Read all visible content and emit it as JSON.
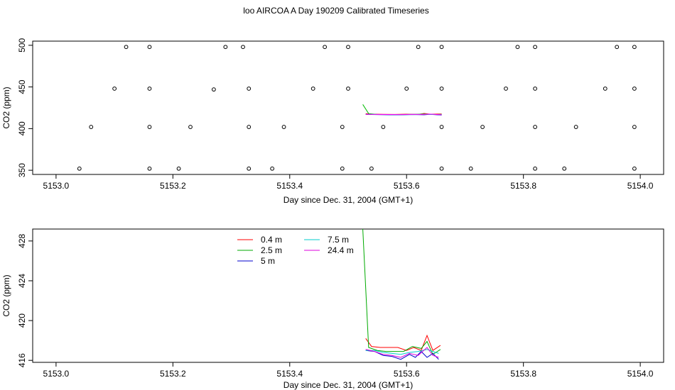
{
  "figure": {
    "title": "loo AIRCOA A  Day 190209  Calibrated Timeseries"
  },
  "chart_data": [
    {
      "type": "scatter",
      "xlabel": "Day since Dec. 31, 2004 (GMT+1)",
      "ylabel": "CO2 (ppm)",
      "xlim": [
        5152.96,
        5154.04
      ],
      "ylim": [
        345,
        505
      ],
      "x_ticks": [
        "5153.0",
        "5153.2",
        "5153.4",
        "5153.6",
        "5153.8",
        "5154.0"
      ],
      "y_ticks": [
        "350",
        "400",
        "450",
        "500"
      ],
      "grid": false,
      "points": [
        {
          "x": 5153.04,
          "y": 352
        },
        {
          "x": 5153.06,
          "y": 402
        },
        {
          "x": 5153.1,
          "y": 448
        },
        {
          "x": 5153.12,
          "y": 498
        },
        {
          "x": 5153.16,
          "y": 352
        },
        {
          "x": 5153.16,
          "y": 402
        },
        {
          "x": 5153.16,
          "y": 448
        },
        {
          "x": 5153.16,
          "y": 498
        },
        {
          "x": 5153.21,
          "y": 352
        },
        {
          "x": 5153.23,
          "y": 402
        },
        {
          "x": 5153.27,
          "y": 447
        },
        {
          "x": 5153.29,
          "y": 498
        },
        {
          "x": 5153.32,
          "y": 498
        },
        {
          "x": 5153.33,
          "y": 448
        },
        {
          "x": 5153.33,
          "y": 402
        },
        {
          "x": 5153.33,
          "y": 352
        },
        {
          "x": 5153.37,
          "y": 352
        },
        {
          "x": 5153.39,
          "y": 402
        },
        {
          "x": 5153.44,
          "y": 448
        },
        {
          "x": 5153.46,
          "y": 498
        },
        {
          "x": 5153.49,
          "y": 352
        },
        {
          "x": 5153.49,
          "y": 402
        },
        {
          "x": 5153.5,
          "y": 448
        },
        {
          "x": 5153.5,
          "y": 498
        },
        {
          "x": 5153.54,
          "y": 352
        },
        {
          "x": 5153.56,
          "y": 402
        },
        {
          "x": 5153.6,
          "y": 448
        },
        {
          "x": 5153.62,
          "y": 498
        },
        {
          "x": 5153.66,
          "y": 498
        },
        {
          "x": 5153.66,
          "y": 448
        },
        {
          "x": 5153.66,
          "y": 402
        },
        {
          "x": 5153.66,
          "y": 352
        },
        {
          "x": 5153.71,
          "y": 352
        },
        {
          "x": 5153.73,
          "y": 402
        },
        {
          "x": 5153.77,
          "y": 448
        },
        {
          "x": 5153.79,
          "y": 498
        },
        {
          "x": 5153.82,
          "y": 498
        },
        {
          "x": 5153.82,
          "y": 448
        },
        {
          "x": 5153.82,
          "y": 402
        },
        {
          "x": 5153.82,
          "y": 352
        },
        {
          "x": 5153.87,
          "y": 352
        },
        {
          "x": 5153.89,
          "y": 402
        },
        {
          "x": 5153.94,
          "y": 448
        },
        {
          "x": 5153.96,
          "y": 498
        },
        {
          "x": 5153.99,
          "y": 498
        },
        {
          "x": 5153.99,
          "y": 448
        },
        {
          "x": 5153.99,
          "y": 402
        },
        {
          "x": 5153.99,
          "y": 352
        }
      ],
      "series": [
        {
          "color": "#ff0000",
          "x": [
            5153.53,
            5153.54,
            5153.56,
            5153.58,
            5153.6,
            5153.62,
            5153.63,
            5153.64,
            5153.66
          ],
          "y": [
            418,
            417.4,
            417.2,
            417.0,
            417.3,
            417.0,
            418.2,
            417.3,
            417.6
          ]
        },
        {
          "color": "#00bb00",
          "x": [
            5153.525,
            5153.535,
            5153.55,
            5153.57,
            5153.59,
            5153.61,
            5153.63,
            5153.65,
            5153.66
          ],
          "y": [
            429,
            418,
            417.0,
            416.8,
            416.9,
            417.2,
            417.5,
            416.9,
            417.2
          ]
        },
        {
          "color": "#0000cc",
          "x": [
            5153.53,
            5153.55,
            5153.57,
            5153.59,
            5153.61,
            5153.63,
            5153.64,
            5153.66
          ],
          "y": [
            417.0,
            416.8,
            416.6,
            416.5,
            416.9,
            416.6,
            417.2,
            416.2
          ]
        },
        {
          "color": "#00cccc",
          "x": [
            5153.53,
            5153.55,
            5153.57,
            5153.59,
            5153.61,
            5153.63,
            5153.64,
            5153.66
          ],
          "y": [
            417.1,
            416.9,
            416.8,
            416.7,
            416.8,
            417.0,
            417.0,
            416.8
          ]
        },
        {
          "color": "#ff00ff",
          "x": [
            5153.53,
            5153.55,
            5153.57,
            5153.59,
            5153.61,
            5153.63,
            5153.64,
            5153.66
          ],
          "y": [
            417.2,
            417.0,
            416.9,
            416.8,
            417.2,
            417.0,
            417.4,
            416.6
          ]
        }
      ]
    },
    {
      "type": "line",
      "xlabel": "Day since Dec. 31, 2004 (GMT+1)",
      "ylabel": "CO2 (ppm)",
      "xlim": [
        5152.96,
        5154.04
      ],
      "ylim": [
        415.8,
        429.2
      ],
      "x_ticks": [
        "5153.0",
        "5153.2",
        "5153.4",
        "5153.6",
        "5153.8",
        "5154.0"
      ],
      "y_ticks": [
        "416",
        "420",
        "424",
        "428"
      ],
      "grid": false,
      "legend_position": "top-left",
      "series": [
        {
          "name": "0.4 m",
          "color": "#ff0000",
          "x": [
            5153.53,
            5153.54,
            5153.555,
            5153.57,
            5153.585,
            5153.6,
            5153.612,
            5153.625,
            5153.635,
            5153.645,
            5153.658
          ],
          "y": [
            418.2,
            417.4,
            417.3,
            417.3,
            417.3,
            417.0,
            417.3,
            417.0,
            418.5,
            417.0,
            417.5
          ]
        },
        {
          "name": "2.5 m",
          "color": "#00aa00",
          "x": [
            5153.525,
            5153.535,
            5153.55,
            5153.565,
            5153.58,
            5153.595,
            5153.61,
            5153.625,
            5153.635,
            5153.645,
            5153.658
          ],
          "y": [
            429.2,
            417.3,
            417.0,
            416.9,
            416.9,
            416.9,
            417.4,
            417.2,
            417.9,
            416.6,
            417.1
          ]
        },
        {
          "name": "5 m",
          "color": "#0000cc",
          "x": [
            5153.53,
            5153.545,
            5153.56,
            5153.575,
            5153.59,
            5153.605,
            5153.615,
            5153.625,
            5153.635,
            5153.645,
            5153.655
          ],
          "y": [
            417.0,
            416.9,
            416.5,
            416.4,
            416.1,
            416.6,
            416.3,
            416.9,
            416.3,
            416.7,
            416.1
          ]
        },
        {
          "name": "7.5 m",
          "color": "#00cccc",
          "x": [
            5153.53,
            5153.545,
            5153.56,
            5153.575,
            5153.59,
            5153.605,
            5153.62,
            5153.635,
            5153.645,
            5153.655
          ],
          "y": [
            417.0,
            417.0,
            416.8,
            416.7,
            416.6,
            416.8,
            416.9,
            417.1,
            416.9,
            416.7
          ]
        },
        {
          "name": "24.4 m",
          "color": "#dd00dd",
          "x": [
            5153.53,
            5153.545,
            5153.56,
            5153.575,
            5153.59,
            5153.605,
            5153.62,
            5153.635,
            5153.645,
            5153.655
          ],
          "y": [
            417.1,
            416.9,
            416.6,
            416.5,
            416.3,
            416.7,
            416.5,
            417.3,
            416.5,
            416.3
          ]
        }
      ]
    }
  ]
}
